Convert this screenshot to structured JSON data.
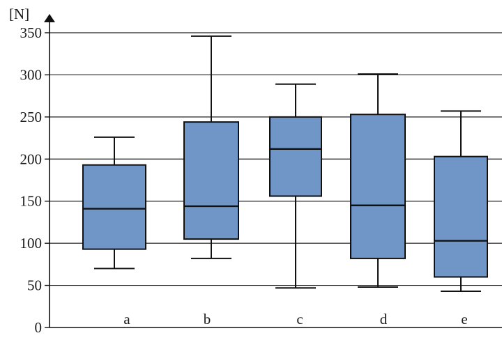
{
  "chart_data": {
    "type": "boxplot",
    "title": "",
    "xlabel": "",
    "ylabel": "[N]",
    "ylim": [
      0,
      350
    ],
    "yticks": [
      0,
      50,
      100,
      150,
      200,
      250,
      300,
      350
    ],
    "ytick_labels": [
      "0",
      "50",
      "100",
      "150",
      "200",
      "250",
      "300",
      "350"
    ],
    "grid": true,
    "categories": [
      "a",
      "b",
      "c",
      "d",
      "e"
    ],
    "boxes": [
      {
        "category": "a",
        "min": 70,
        "q1": 93,
        "median": 141,
        "q3": 193,
        "max": 226
      },
      {
        "category": "b",
        "min": 82,
        "q1": 105,
        "median": 144,
        "q3": 244,
        "max": 346
      },
      {
        "category": "c",
        "min": 47,
        "q1": 156,
        "median": 212,
        "q3": 250,
        "max": 289
      },
      {
        "category": "d",
        "min": 48,
        "q1": 82,
        "median": 145,
        "q3": 253,
        "max": 301
      },
      {
        "category": "e",
        "min": 43,
        "q1": 60,
        "median": 103,
        "q3": 203,
        "max": 257
      }
    ],
    "colors": {
      "box_fill": "#7096c8",
      "stroke": "#111111",
      "grid": "#222222"
    }
  }
}
